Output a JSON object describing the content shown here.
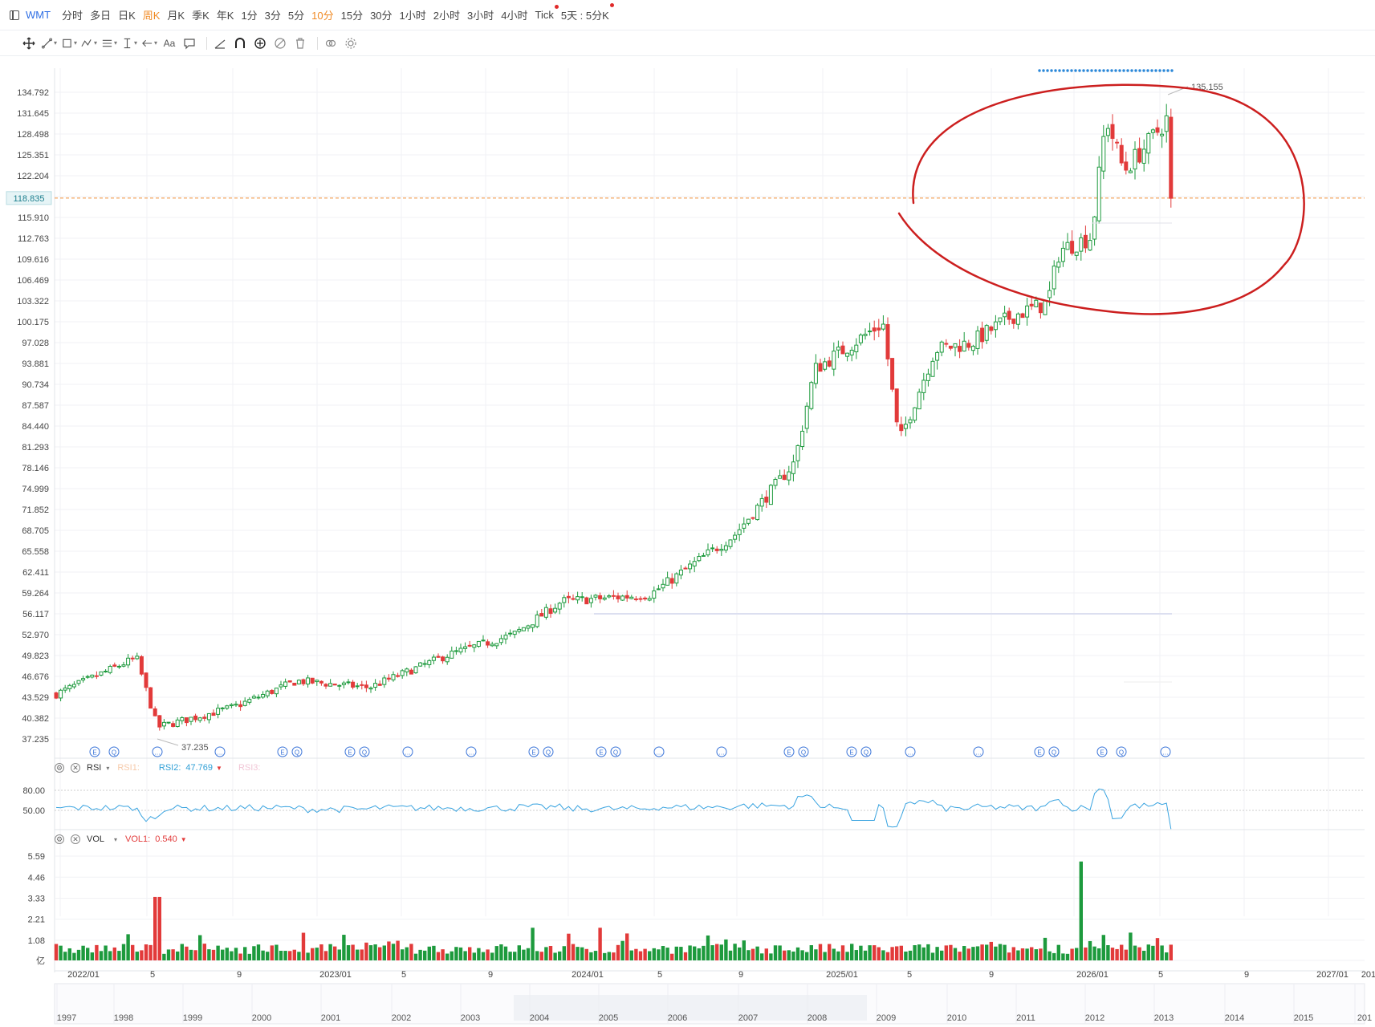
{
  "toolbar_top": {
    "symbol": "WMT",
    "periods": [
      "分时",
      "多日",
      "日K",
      "周K",
      "月K",
      "季K",
      "年K",
      "1分",
      "3分",
      "5分",
      "10分",
      "15分",
      "30分",
      "1小时",
      "2小时",
      "3小时",
      "4小时",
      "Tick",
      "5天 : 5分K"
    ],
    "active_period": "周K",
    "highlight_period": "10分"
  },
  "drawing_tools": [
    "move-icon",
    "line-tool-icon",
    "rect-tool-icon",
    "pattern-tool-icon",
    "fib-tool-icon",
    "measure-tool-icon",
    "arrow-tool-icon",
    "text-tool-icon",
    "comment-tool-icon",
    "angle-icon",
    "magnet-icon",
    "sync-icon",
    "hide-icon",
    "trash-icon",
    "link-icon",
    "settings-icon"
  ],
  "price_axis": {
    "labels": [
      "134.792",
      "131.645",
      "128.498",
      "125.351",
      "122.204",
      "119.057",
      "115.910",
      "112.763",
      "109.616",
      "106.469",
      "103.322",
      "100.175",
      "97.028",
      "93.881",
      "90.734",
      "87.587",
      "84.440",
      "81.293",
      "78.146",
      "74.999",
      "71.852",
      "68.705",
      "65.558",
      "62.411",
      "59.264",
      "56.117",
      "52.970",
      "49.823",
      "46.676",
      "43.529",
      "40.382",
      "37.235"
    ],
    "current_price": "118.835",
    "high_label": "135.155",
    "low_label": "37.235"
  },
  "date_axis": {
    "labels": [
      "2022/01",
      "5",
      "9",
      "2023/01",
      "5",
      "9",
      "2024/01",
      "5",
      "9",
      "2025/01",
      "5",
      "9",
      "2026/01",
      "5",
      "9",
      "2027/01",
      "201"
    ]
  },
  "overview_axis": {
    "labels": [
      "1997",
      "1998",
      "1999",
      "2000",
      "2001",
      "2002",
      "2003",
      "2004",
      "2005",
      "2006",
      "2007",
      "2008",
      "2009",
      "2010",
      "2011",
      "2012",
      "2013",
      "2014",
      "2015",
      "201"
    ]
  },
  "rsi_panel": {
    "name": "RSI",
    "rsi1_label": "RSI1:",
    "rsi2_label": "RSI2:",
    "rsi2_value": "47.769",
    "rsi3_label": "RSI3:",
    "axis": [
      "80.00",
      "50.00"
    ]
  },
  "vol_panel": {
    "name": "VOL",
    "vol1_label": "VOL1:",
    "vol1_value": "0.540",
    "axis": [
      "5.59",
      "4.46",
      "3.33",
      "2.21",
      "1.08",
      "亿"
    ]
  },
  "event_markers": [
    "E",
    "Q",
    "…",
    "…",
    "E",
    "Q",
    "E",
    "Q",
    "…",
    "…",
    "E",
    "Q",
    "E",
    "Q",
    "…",
    "…",
    "E",
    "Q",
    "E",
    "Q",
    "…",
    "…",
    "E",
    "Q",
    "E",
    "Q",
    "…"
  ],
  "colors": {
    "up": "#1d9a3d",
    "down": "#e23a3a",
    "accent": "#2f6fe4",
    "rsi_line": "#38a3e0",
    "annotation": "#cc1f1f",
    "current_line": "#f0913a"
  },
  "chart_data": {
    "type": "candlestick",
    "interval": "weekly",
    "ylim": [
      37.235,
      134.792
    ],
    "series": [
      {
        "name": "close",
        "x": [
          "2022/01",
          "2022/04",
          "2022/05",
          "2022/09",
          "2023/01",
          "2023/05",
          "2023/09",
          "2024/01",
          "2024/03",
          "2024/05",
          "2024/07",
          "2024/09",
          "2024/11",
          "2025/01",
          "2025/03",
          "2025/04",
          "2025/05",
          "2025/07",
          "2025/09",
          "2025/11",
          "2025/12",
          "2026/01",
          "2026/02",
          "2026/03",
          "2026/04",
          "2026/05"
        ],
        "values": [
          44,
          49.5,
          39,
          42,
          46,
          45,
          50,
          53,
          58,
          59,
          68,
          79,
          93,
          100,
          82,
          96,
          97,
          101,
          103,
          111,
          113,
          131,
          123,
          127,
          131,
          118.8
        ]
      }
    ],
    "annotations": [
      "red-circle-around-top-region",
      "blue-dotted-high-line"
    ]
  }
}
